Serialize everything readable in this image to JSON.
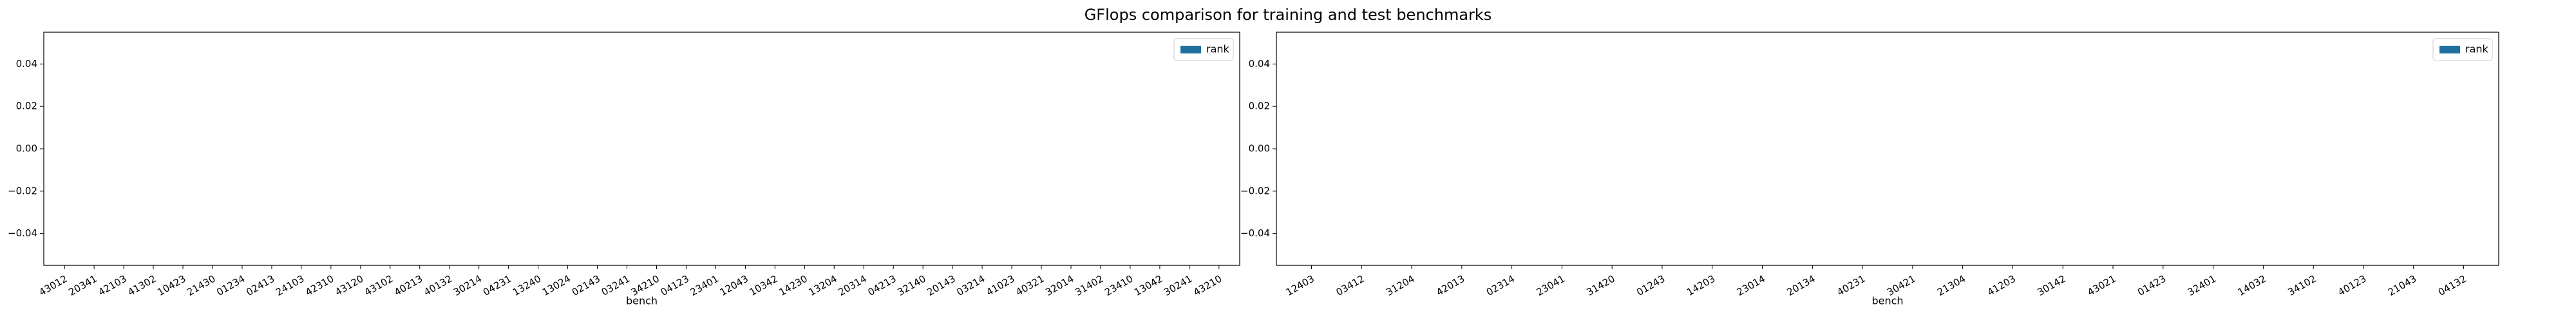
{
  "title": "GFlops comparison for training and test benchmarks",
  "chart_data": [
    {
      "type": "bar",
      "categories": [
        "43012",
        "20341",
        "42103",
        "41302",
        "10423",
        "21430",
        "01234",
        "02413",
        "24103",
        "42310",
        "43120",
        "43102",
        "40213",
        "40132",
        "30214",
        "04231",
        "13240",
        "13024",
        "02143",
        "03241",
        "34210",
        "04123",
        "23401",
        "12043",
        "10342",
        "14230",
        "13204",
        "20314",
        "04213",
        "32140",
        "20143",
        "03214",
        "41023",
        "40321",
        "32014",
        "31402",
        "23410",
        "13042",
        "30241",
        "43210"
      ],
      "series": [
        {
          "name": "rank",
          "color": "#1f6f9f",
          "values": [
            0,
            0,
            0,
            0,
            0,
            0,
            0,
            0,
            0,
            0,
            0,
            0,
            0,
            0,
            0,
            0,
            0,
            0,
            0,
            0,
            0,
            0,
            0,
            0,
            0,
            0,
            0,
            0,
            0,
            0,
            0,
            0,
            0,
            0,
            0,
            0,
            0,
            0,
            0,
            0
          ]
        }
      ],
      "xlabel": "bench",
      "ylim": [
        -0.055,
        0.055
      ],
      "yticks": [
        {
          "value": -0.04,
          "label": "−0.04"
        },
        {
          "value": -0.02,
          "label": "−0.02"
        },
        {
          "value": 0,
          "label": "0.00"
        },
        0.02,
        0.04
      ],
      "legend": "upper right"
    },
    {
      "type": "bar",
      "categories": [
        "12403",
        "03412",
        "31204",
        "42013",
        "02314",
        "23041",
        "31420",
        "01243",
        "14203",
        "23014",
        "20134",
        "40231",
        "30421",
        "21304",
        "41203",
        "30142",
        "43021",
        "01423",
        "32401",
        "14032",
        "34102",
        "40123",
        "21043",
        "04132"
      ],
      "series": [
        {
          "name": "rank",
          "color": "#1f6f9f",
          "values": [
            0,
            0,
            0,
            0,
            0,
            0,
            0,
            0,
            0,
            0,
            0,
            0,
            0,
            0,
            0,
            0,
            0,
            0,
            0,
            0,
            0,
            0,
            0,
            0
          ]
        }
      ],
      "xlabel": "bench",
      "ylim": [
        -0.055,
        0.055
      ],
      "yticks": [
        {
          "value": -0.04,
          "label": "−0.04"
        },
        {
          "value": -0.02,
          "label": "−0.02"
        },
        {
          "value": 0,
          "label": "0.00"
        },
        0.02,
        0.04
      ],
      "legend": "upper right"
    }
  ]
}
